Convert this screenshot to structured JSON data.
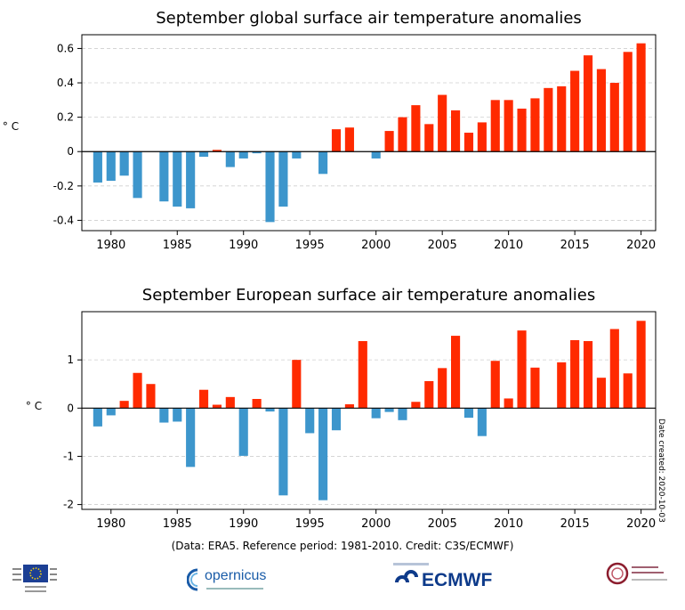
{
  "chart_data": [
    {
      "type": "bar",
      "title": "September global surface air temperature anomalies",
      "ylabel": "° C",
      "xlabel": "",
      "x": [
        1979,
        1980,
        1981,
        1982,
        1983,
        1984,
        1985,
        1986,
        1987,
        1988,
        1989,
        1990,
        1991,
        1992,
        1993,
        1994,
        1995,
        1996,
        1997,
        1998,
        1999,
        2000,
        2001,
        2002,
        2003,
        2004,
        2005,
        2006,
        2007,
        2008,
        2009,
        2010,
        2011,
        2012,
        2013,
        2014,
        2015,
        2016,
        2017,
        2018,
        2019,
        2020
      ],
      "values": [
        -0.18,
        -0.17,
        -0.14,
        -0.27,
        0.0,
        -0.29,
        -0.32,
        -0.33,
        -0.03,
        0.01,
        -0.09,
        -0.04,
        -0.01,
        -0.41,
        -0.32,
        -0.04,
        0.0,
        -0.13,
        0.13,
        0.14,
        0.0,
        -0.04,
        0.12,
        0.2,
        0.27,
        0.16,
        0.33,
        0.24,
        0.11,
        0.17,
        0.3,
        0.3,
        0.25,
        0.31,
        0.37,
        0.38,
        0.47,
        0.56,
        0.48,
        0.4,
        0.58,
        0.63
      ],
      "ylim": [
        -0.46,
        0.68
      ],
      "yticks": [
        -0.4,
        -0.2,
        0,
        0.2,
        0.4,
        0.6
      ],
      "ytick_labels": [
        "-0.4",
        "-0.2",
        "0",
        "0.2",
        "0.4",
        "0.6"
      ],
      "xlim": [
        1977.8,
        2021.1
      ],
      "xticks": [
        1980,
        1985,
        1990,
        1995,
        2000,
        2005,
        2010,
        2015,
        2020
      ],
      "xtick_labels": [
        "1980",
        "1985",
        "1990",
        "1995",
        "2000",
        "2005",
        "2010",
        "2015",
        "2020"
      ],
      "grid": true,
      "colors": {
        "positive": "#ff2a00",
        "negative": "#3d96cc"
      }
    },
    {
      "type": "bar",
      "title": "September European surface air temperature anomalies",
      "ylabel": "° C",
      "xlabel": "",
      "x": [
        1979,
        1980,
        1981,
        1982,
        1983,
        1984,
        1985,
        1986,
        1987,
        1988,
        1989,
        1990,
        1991,
        1992,
        1993,
        1994,
        1995,
        1996,
        1997,
        1998,
        1999,
        2000,
        2001,
        2002,
        2003,
        2004,
        2005,
        2006,
        2007,
        2008,
        2009,
        2010,
        2011,
        2012,
        2013,
        2014,
        2015,
        2016,
        2017,
        2018,
        2019,
        2020
      ],
      "values": [
        -0.38,
        -0.15,
        0.15,
        0.73,
        0.5,
        -0.3,
        -0.28,
        -1.22,
        0.38,
        0.07,
        0.23,
        -0.99,
        0.19,
        -0.07,
        -1.81,
        1.0,
        -0.52,
        -1.91,
        -0.46,
        0.08,
        1.39,
        -0.21,
        -0.08,
        -0.25,
        0.13,
        0.56,
        0.83,
        1.5,
        -0.2,
        -0.58,
        0.98,
        0.2,
        1.61,
        0.84,
        0.0,
        0.95,
        1.41,
        1.39,
        0.63,
        1.64,
        0.72,
        1.81
      ],
      "ylim": [
        -2.1,
        2.0
      ],
      "yticks": [
        -2,
        -1,
        0,
        1
      ],
      "ytick_labels": [
        "-2",
        "-1",
        "0",
        "1"
      ],
      "xlim": [
        1977.8,
        2021.1
      ],
      "xticks": [
        1980,
        1985,
        1990,
        1995,
        2000,
        2005,
        2010,
        2015,
        2020
      ],
      "xtick_labels": [
        "1980",
        "1985",
        "1990",
        "1995",
        "2000",
        "2005",
        "2010",
        "2015",
        "2020"
      ],
      "grid": true,
      "colors": {
        "positive": "#ff2a00",
        "negative": "#3d96cc"
      }
    }
  ],
  "footer": {
    "credit": "(Data: ERA5.  Reference period: 1981-2010.  Credit: C3S/ECMWF)",
    "date_created": "Date created: 2020-10-03"
  },
  "logos": {
    "copernicus": "opernicus",
    "ecmwf": "ECMWF"
  },
  "icons": {
    "eu": "eu-flag-icon",
    "copernicus": "copernicus-swirl-icon",
    "ecmwf": "ecmwf-arrows-icon",
    "c3s": "climate-change-service-icon"
  }
}
